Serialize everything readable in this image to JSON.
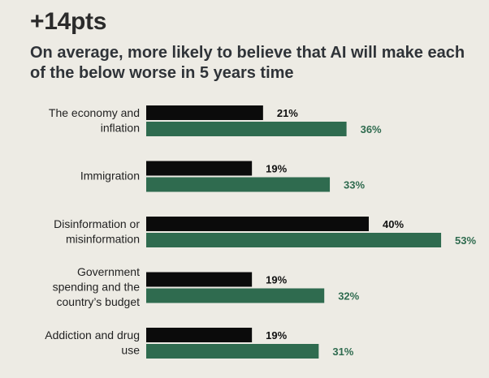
{
  "header": {
    "headline": "+14pts",
    "subtitle": "On average, more likely to believe that AI will make each of the below worse in 5 years time"
  },
  "colors": {
    "series_a": "#0b0b0b",
    "series_b": "#2f6b4f",
    "label_a": "#111111",
    "label_b": "#2f6b4f",
    "background": "#edebe4"
  },
  "chart_data": {
    "type": "bar",
    "orientation": "horizontal",
    "title": "+14pts",
    "subtitle": "On average, more likely to believe that AI will make each of the below worse in 5 years time",
    "xlabel": "",
    "ylabel": "",
    "xlim": [
      0,
      60
    ],
    "grid": false,
    "categories": [
      [
        "The economy and",
        "inflation"
      ],
      [
        "Immigration"
      ],
      [
        "Disinformation or",
        "misinformation"
      ],
      [
        "Government",
        "spending and the",
        "country’s budget"
      ],
      [
        "Addiction and drug",
        "use"
      ]
    ],
    "series": [
      {
        "name": "series_a",
        "color": "#0b0b0b",
        "values": [
          21,
          19,
          40,
          19,
          19
        ],
        "labels": [
          "21%",
          "19%",
          "40%",
          "19%",
          "19%"
        ]
      },
      {
        "name": "series_b",
        "color": "#2f6b4f",
        "values": [
          36,
          33,
          53,
          32,
          31
        ],
        "labels": [
          "36%",
          "33%",
          "53%",
          "32%",
          "31%"
        ]
      }
    ]
  }
}
